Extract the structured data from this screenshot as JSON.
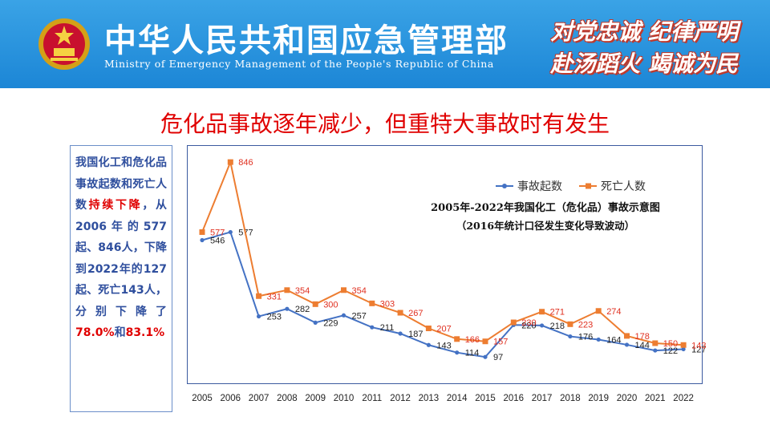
{
  "header": {
    "ministry_cn": "中华人民共和国应急管理部",
    "ministry_en": "Ministry of Emergency Management of the People's Republic of China",
    "slogan_line1": "对党忠诚 纪律严明",
    "slogan_line2": "赴汤蹈火 竭诚为民",
    "bg_color": "#1c86d6"
  },
  "page_title": "危化品事故逐年减少，但重特大事故时有发生",
  "sidebar": {
    "part1": "我国化工和危化品事故起数和死亡人数",
    "part2": "持续下降",
    "part3": "，从2006年的577起、846人，下降到2022年的127起、死亡143人，分别下降了",
    "part4": "78.0%",
    "part5": "和",
    "part6": "83.1%"
  },
  "chart_data": {
    "type": "line",
    "title": "2005年-2022年我国化工（危化品）事故示意图",
    "subtitle": "（2016年统计口径发生变化导致波动）",
    "x": [
      "2005",
      "2006",
      "2007",
      "2008",
      "2009",
      "2010",
      "2011",
      "2012",
      "2013",
      "2014",
      "2015",
      "2016",
      "2017",
      "2018",
      "2019",
      "2020",
      "2021",
      "2022"
    ],
    "series": [
      {
        "name": "事故起数",
        "color": "#4472c4",
        "values": [
          546,
          577,
          253,
          282,
          229,
          257,
          211,
          187,
          143,
          114,
          97,
          220,
          218,
          176,
          164,
          144,
          122,
          127
        ]
      },
      {
        "name": "死亡人数",
        "color": "#ed7d31",
        "values": [
          577,
          846,
          331,
          354,
          300,
          354,
          303,
          267,
          207,
          166,
          157,
          230,
          271,
          223,
          274,
          178,
          150,
          143
        ]
      }
    ],
    "legend_position": "top-right",
    "grid": false,
    "ylim": [
      0,
      900
    ]
  }
}
